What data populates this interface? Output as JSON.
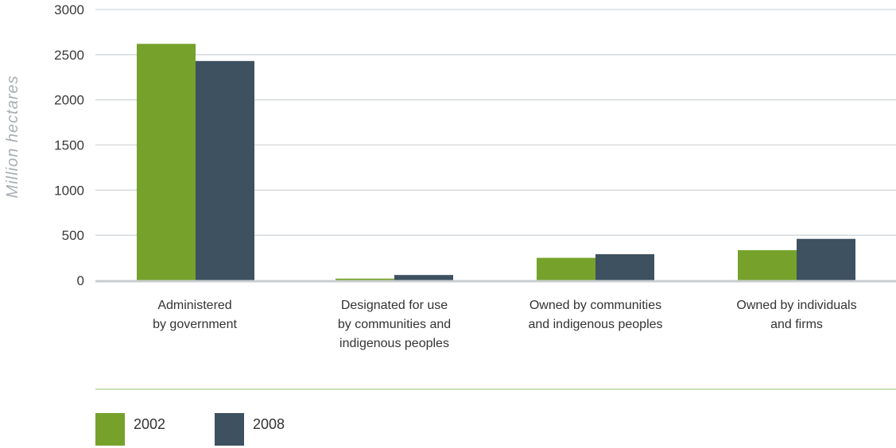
{
  "chart_data": {
    "type": "bar",
    "title": "",
    "xlabel": "",
    "ylabel": "Million hectares",
    "ylim": [
      0,
      3000
    ],
    "yticks": [
      0,
      500,
      1000,
      1500,
      2000,
      2500,
      3000
    ],
    "grid": true,
    "legend_position": "bottom-left",
    "categories": [
      [
        "Administered",
        "by government"
      ],
      [
        "Designated for use",
        "by communities and",
        "indigenous peoples"
      ],
      [
        "Owned by communities",
        "and indigenous peoples"
      ],
      [
        "Owned by individuals",
        "and firms"
      ]
    ],
    "series": [
      {
        "name": "2002",
        "color": "#76a22c",
        "values": [
          2620,
          20,
          250,
          335
        ]
      },
      {
        "name": "2008",
        "color": "#3d5160",
        "values": [
          2430,
          60,
          290,
          460
        ]
      }
    ]
  },
  "colors": {
    "gridline": "#d2d6d9",
    "baseline": "#c9cdd0",
    "separator": "#cfe0b4"
  }
}
